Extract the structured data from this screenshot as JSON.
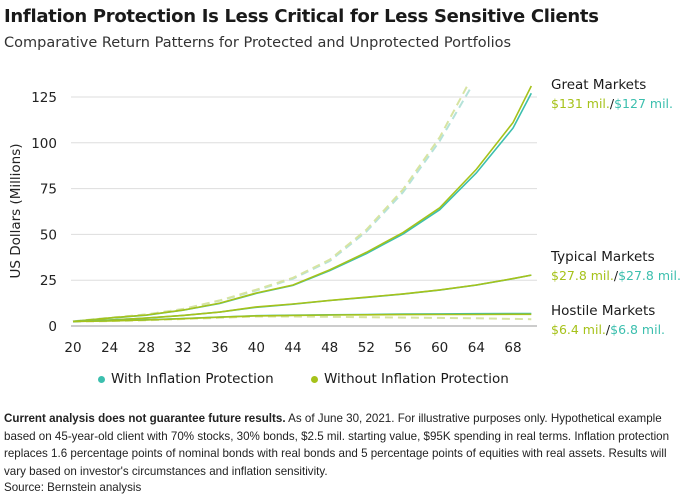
{
  "title": "Inflation Protection Is Less Critical for Less Sensitive Clients",
  "subtitle": "Comparative Return Patterns for Protected and Unprotected Portfolios",
  "colors": {
    "with": "#3cbfae",
    "without": "#a6c21a",
    "with_dashed": "#b5e2d9",
    "without_dashed": "#d7e4a2",
    "grid": "#dddddd"
  },
  "chart_data": {
    "type": "line",
    "ylabel": "US Dollars (Millions)",
    "xlabel": "",
    "xlim": [
      20,
      70
    ],
    "ylim": [
      0,
      130
    ],
    "xticks": [
      20,
      24,
      28,
      32,
      36,
      40,
      44,
      48,
      52,
      56,
      60,
      64,
      68
    ],
    "yticks": [
      0,
      25,
      50,
      75,
      100,
      125
    ],
    "grid": true,
    "legend_position": "bottom",
    "series": [
      {
        "name": "With Inflation Protection",
        "scenario": "Great Markets",
        "style": "solid",
        "x": [
          20,
          24,
          28,
          32,
          36,
          40,
          44,
          48,
          52,
          56,
          60,
          64,
          68,
          70
        ],
        "y": [
          2.5,
          4.3,
          5.9,
          8.6,
          12.3,
          17.8,
          22.2,
          30.2,
          39.5,
          50.2,
          63.5,
          83.5,
          108,
          127
        ]
      },
      {
        "name": "Without Inflation Protection",
        "scenario": "Great Markets",
        "style": "solid",
        "x": [
          20,
          24,
          28,
          32,
          36,
          40,
          44,
          48,
          52,
          56,
          60,
          64,
          68,
          70
        ],
        "y": [
          2.5,
          4.4,
          6.0,
          8.7,
          12.5,
          18.0,
          22.4,
          30.6,
          40.2,
          51.0,
          64.5,
          85.5,
          111,
          131
        ]
      },
      {
        "name": "With Inflation Protection",
        "scenario": "Great Markets",
        "style": "dashed",
        "x": [
          20,
          24,
          28,
          32,
          36,
          40,
          44,
          48,
          52,
          56,
          60,
          63.5
        ],
        "y": [
          2.5,
          4.5,
          6.3,
          9.2,
          13.8,
          19.4,
          25.8,
          35.5,
          51.5,
          73,
          101,
          131
        ]
      },
      {
        "name": "Without Inflation Protection",
        "scenario": "Great Markets",
        "style": "dashed",
        "x": [
          20,
          24,
          28,
          32,
          36,
          40,
          44,
          48,
          52,
          56,
          60,
          63
        ],
        "y": [
          2.5,
          4.5,
          6.3,
          9.3,
          14.0,
          19.8,
          26.3,
          36.2,
          52.5,
          74.5,
          103,
          131
        ]
      },
      {
        "name": "With Inflation Protection",
        "scenario": "Typical Markets",
        "style": "solid",
        "x": [
          20,
          24,
          28,
          32,
          36,
          40,
          44,
          48,
          52,
          56,
          60,
          64,
          68,
          70
        ],
        "y": [
          2.5,
          3.2,
          4.3,
          5.8,
          7.6,
          10.2,
          11.9,
          13.9,
          15.6,
          17.4,
          19.6,
          22.3,
          25.8,
          27.8
        ]
      },
      {
        "name": "Without Inflation Protection",
        "scenario": "Typical Markets",
        "style": "solid",
        "x": [
          20,
          24,
          28,
          32,
          36,
          40,
          44,
          48,
          52,
          56,
          60,
          64,
          68,
          70
        ],
        "y": [
          2.5,
          3.2,
          4.3,
          5.8,
          7.6,
          10.4,
          12.0,
          14.0,
          15.7,
          17.5,
          19.7,
          22.4,
          25.9,
          27.8
        ]
      },
      {
        "name": "With Inflation Protection",
        "scenario": "Hostile Markets",
        "style": "solid",
        "x": [
          20,
          24,
          28,
          32,
          36,
          40,
          44,
          48,
          52,
          56,
          60,
          64,
          68,
          70
        ],
        "y": [
          2.5,
          2.9,
          3.4,
          4.1,
          4.9,
          5.6,
          5.9,
          6.1,
          6.3,
          6.5,
          6.6,
          6.7,
          6.8,
          6.8
        ]
      },
      {
        "name": "Without Inflation Protection",
        "scenario": "Hostile Markets",
        "style": "solid",
        "x": [
          20,
          24,
          28,
          32,
          36,
          40,
          44,
          48,
          52,
          56,
          60,
          64,
          68,
          70
        ],
        "y": [
          2.5,
          2.8,
          3.3,
          4.0,
          4.8,
          5.5,
          5.8,
          6.0,
          6.1,
          6.2,
          6.3,
          6.3,
          6.4,
          6.4
        ]
      },
      {
        "name": "Without Inflation Protection",
        "scenario": "Hostile Markets",
        "style": "dashed",
        "x": [
          20,
          24,
          28,
          32,
          36,
          40,
          44,
          48,
          52,
          56,
          60,
          64,
          68,
          70
        ],
        "y": [
          2.4,
          2.7,
          3.1,
          3.8,
          4.5,
          5.2,
          5.2,
          5.0,
          4.8,
          4.6,
          4.4,
          4.2,
          3.9,
          3.7
        ]
      }
    ]
  },
  "annotations": {
    "great": {
      "label": "Great Markets",
      "without": "$131 mil.",
      "sep": "/",
      "with": "$127 mil."
    },
    "typical": {
      "label": "Typical Markets",
      "without": "$27.8 mil.",
      "sep": "/",
      "with": "$27.8 mil."
    },
    "hostile": {
      "label": "Hostile Markets",
      "without": "$6.4 mil.",
      "sep": "/",
      "with": "$6.8 mil."
    }
  },
  "legend": {
    "with": "With Inflation Protection",
    "without": "Without Inflation Protection"
  },
  "notes": {
    "bold": "Current analysis does not guarantee future results.",
    "text": " As of June 30, 2021. For illustrative purposes only. Hypothetical example based on 45-year-old client with 70% stocks, 30% bonds, $2.5 mil. starting value, $95K spending in real terms. Inflation protection replaces 1.6 percentage points of nominal bonds with real bonds and 5 percentage points of equities with real assets. Results will vary based on investor's circumstances and inflation sensitivity.",
    "source": "Source: Bernstein analysis"
  }
}
